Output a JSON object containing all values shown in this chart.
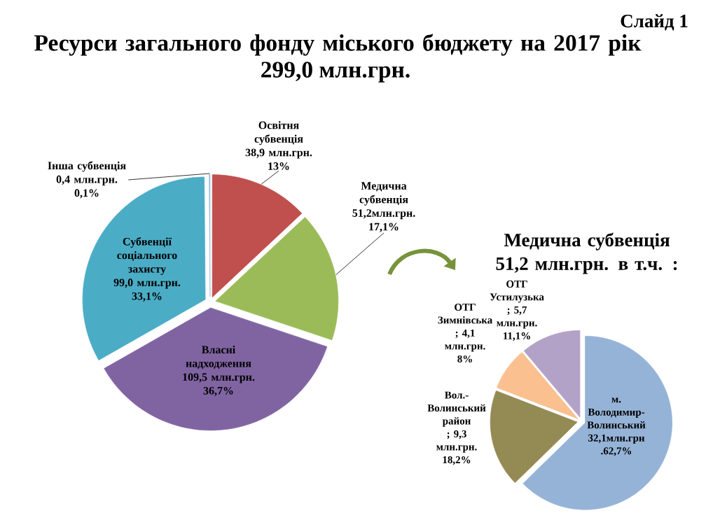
{
  "chart_data": [
    {
      "type": "pie",
      "title": "Ресурси загального фонду міського бюджету на 2017 рік",
      "subtitle": "299,0 млн.грн.",
      "annotations": [
        "Слайд 1"
      ],
      "categories": [
        "Освітня субвенція",
        "Медична субвенція",
        "Власні надходження",
        "Субвенції соціального захисту",
        "Інша субвенція"
      ],
      "values": [
        38.9,
        51.2,
        109.5,
        99.0,
        0.4
      ],
      "colors": [
        "#c0504d",
        "#9bbb59",
        "#8064a2",
        "#4bacc6",
        "#9dc3e6"
      ],
      "value_labels": [
        "38,9 млн.грн. 13%",
        "51,2млн.грн. 17,1%",
        "109,5 млн.грн. 36,7%",
        "99,0 млн.грн. 33,1%",
        "0,4 млн.грн. 0,1%"
      ]
    },
    {
      "type": "pie",
      "title": "Медична субвенція 51,2 млн.грн. в т.ч. :",
      "categories": [
        "м. Володимир-Волинський",
        "Вол.-Волинський район",
        "ОТГ Зимнівська",
        "ОТГ Устилузька"
      ],
      "values": [
        32.1,
        9.3,
        4.1,
        5.7
      ],
      "colors": [
        "#95b3d7",
        "#948a54",
        "#fac090",
        "#b3a2c7"
      ],
      "value_labels": [
        "32,1млн.грн .62,7%",
        "; 9,3 млн.грн. 18,2%",
        "; 4,1 млн.грн. 8%",
        "; 5,7 млн.грн. 11,1%"
      ]
    }
  ]
}
